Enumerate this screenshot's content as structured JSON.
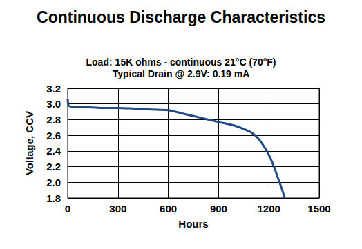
{
  "chart_data": {
    "type": "line",
    "title": "Continuous Discharge Characteristics",
    "subtitle": [
      "Load: 15K ohms - continuous 21°C (70°F)",
      "Typical Drain @ 2.9V: 0.19 mA"
    ],
    "x_label": "Hours",
    "y_label": "Voltage, CCV",
    "x": [
      0,
      5,
      15,
      30,
      100,
      200,
      300,
      400,
      500,
      600,
      700,
      800,
      900,
      1000,
      1050,
      1100,
      1140,
      1170,
      1200,
      1230,
      1260,
      1280,
      1295
    ],
    "values": [
      3.06,
      2.98,
      2.97,
      2.96,
      2.96,
      2.95,
      2.95,
      2.94,
      2.93,
      2.92,
      2.87,
      2.82,
      2.77,
      2.72,
      2.68,
      2.63,
      2.55,
      2.46,
      2.35,
      2.2,
      2.02,
      1.9,
      1.8
    ],
    "color": "#1f4a85",
    "xlim": [
      0,
      1500
    ],
    "xticks": [
      0,
      300,
      600,
      900,
      1200,
      1500
    ],
    "ylim": [
      1.8,
      3.2
    ],
    "yticks": [
      1.8,
      {
        "value": 2,
        "label": "2.0"
      },
      2.2,
      2.4,
      2.6,
      2.8,
      {
        "value": 3,
        "label": "3.0"
      },
      3.2
    ],
    "grid": true
  }
}
